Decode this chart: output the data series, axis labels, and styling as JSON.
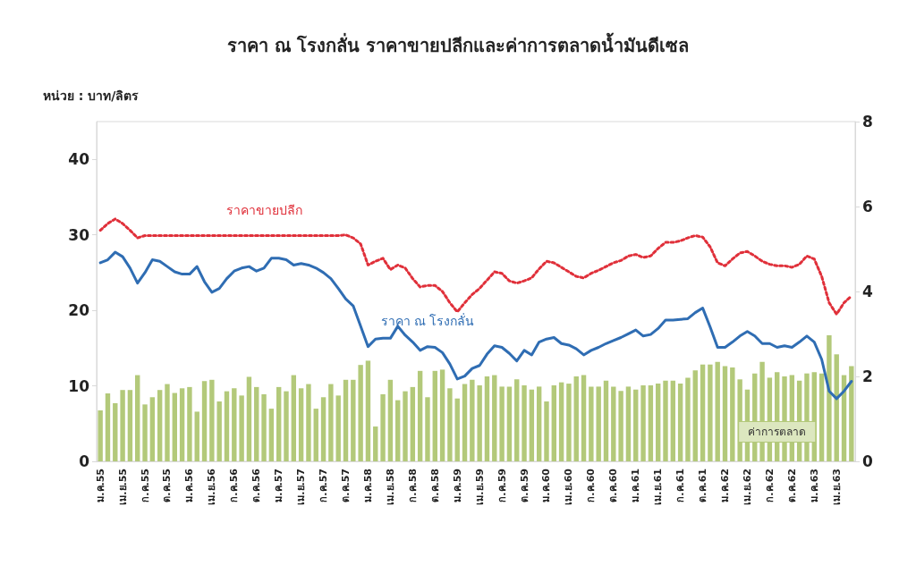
{
  "chart_data": {
    "type": "line",
    "title": "ราคา ณ โรงกลั่น ราคาขายปลีกและค่าการตลาดน้ำมันดีเซล",
    "ylabel": "หน่วย : บาท/ลิตร",
    "categories": [
      "ม.ค.55",
      null,
      null,
      "เม.ย.55",
      null,
      null,
      "ก.ค.55",
      null,
      null,
      "ต.ค.55",
      null,
      null,
      "ม.ค.56",
      null,
      null,
      "เม.ย.56",
      null,
      null,
      "ก.ค.56",
      null,
      null,
      "ต.ค.56",
      null,
      null,
      "ม.ค.57",
      null,
      null,
      "เม.ย.57",
      null,
      null,
      "ก.ค.57",
      null,
      null,
      "ต.ค.57",
      null,
      null,
      "ม.ค.58",
      null,
      null,
      "เม.ย.58",
      null,
      null,
      "ก.ค.58",
      null,
      null,
      "ต.ค.58",
      null,
      null,
      "ม.ค.59",
      null,
      null,
      "เม.ย.59",
      null,
      null,
      "ก.ค.59",
      null,
      null,
      "ต.ค.59",
      null,
      null,
      "ม.ค.60",
      null,
      null,
      "เม.ย.60",
      null,
      null,
      "ก.ค.60",
      null,
      null,
      "ต.ค.60",
      null,
      null,
      "ม.ค.61",
      null,
      null,
      "เม.ย.61",
      null,
      null,
      "ก.ค.61",
      null,
      null,
      "ต.ค.61",
      null,
      null,
      "ม.ค.62",
      null,
      null,
      "เม.ย.62",
      null,
      null,
      "ก.ค.62",
      null,
      null,
      "ต.ค.62",
      null,
      null,
      "ม.ค.63",
      null,
      null,
      "เม.ย.63",
      null,
      null
    ],
    "series": [
      {
        "name": "ค่าการตลาด",
        "type": "bar",
        "axis": "y2",
        "color": "#b3c97a",
        "values": [
          1.2,
          1.6,
          1.37,
          1.68,
          1.68,
          2.03,
          1.34,
          1.51,
          1.68,
          1.82,
          1.61,
          1.72,
          1.75,
          1.17,
          1.89,
          1.92,
          1.41,
          1.65,
          1.72,
          1.55,
          1.99,
          1.75,
          1.58,
          1.24,
          1.75,
          1.65,
          2.03,
          1.72,
          1.82,
          1.24,
          1.51,
          1.82,
          1.55,
          1.92,
          1.92,
          2.27,
          2.37,
          0.82,
          1.58,
          1.92,
          1.44,
          1.65,
          1.75,
          2.13,
          1.51,
          2.13,
          2.16,
          1.72,
          1.48,
          1.82,
          1.92,
          1.79,
          2.0,
          2.03,
          1.76,
          1.76,
          1.93,
          1.79,
          1.69,
          1.76,
          1.41,
          1.79,
          1.86,
          1.83,
          2.0,
          2.03,
          1.76,
          1.76,
          1.9,
          1.76,
          1.66,
          1.76,
          1.69,
          1.79,
          1.79,
          1.83,
          1.9,
          1.9,
          1.83,
          1.97,
          2.14,
          2.28,
          2.28,
          2.34,
          2.24,
          2.21,
          1.93,
          1.69,
          2.07,
          2.34,
          1.97,
          2.1,
          2.0,
          2.03,
          1.9,
          2.07,
          2.1,
          2.07,
          2.97,
          2.52,
          2.03,
          2.24
        ]
      },
      {
        "name": "ราคา ณ โรงกลั่น",
        "line_style": "solid",
        "color": "#2f6db3",
        "values": [
          26.3,
          26.7,
          27.7,
          27.1,
          25.6,
          23.6,
          25.0,
          26.7,
          26.5,
          25.8,
          25.1,
          24.8,
          24.8,
          25.8,
          23.8,
          22.4,
          22.9,
          24.2,
          25.2,
          25.6,
          25.8,
          25.2,
          25.6,
          26.9,
          26.9,
          26.7,
          26.0,
          26.2,
          26.0,
          25.6,
          25.0,
          24.2,
          22.9,
          21.5,
          20.6,
          17.9,
          15.2,
          16.2,
          16.3,
          16.3,
          17.9,
          16.7,
          15.8,
          14.7,
          15.2,
          15.1,
          14.4,
          12.9,
          10.9,
          11.3,
          12.3,
          12.7,
          14.2,
          15.3,
          15.1,
          14.3,
          13.3,
          14.7,
          14.1,
          15.8,
          16.2,
          16.4,
          15.6,
          15.4,
          14.9,
          14.1,
          14.7,
          15.1,
          15.6,
          16.0,
          16.4,
          16.9,
          17.4,
          16.6,
          16.8,
          17.6,
          18.7,
          18.7,
          18.8,
          18.9,
          19.7,
          20.3,
          17.8,
          15.1,
          15.1,
          15.8,
          16.6,
          17.2,
          16.6,
          15.6,
          15.6,
          15.1,
          15.3,
          15.1,
          15.8,
          16.6,
          15.8,
          13.5,
          9.3,
          8.3,
          9.3,
          10.6
        ]
      },
      {
        "name": "ราคาขายปลีก",
        "line_style": "dotted",
        "color": "#e0303a",
        "values": [
          30.6,
          31.5,
          32.1,
          31.5,
          30.6,
          29.6,
          29.9,
          29.9,
          29.9,
          29.9,
          29.9,
          29.9,
          29.9,
          29.9,
          29.9,
          29.9,
          29.9,
          29.9,
          29.9,
          29.9,
          29.9,
          29.9,
          29.9,
          29.9,
          29.9,
          29.9,
          29.9,
          29.9,
          29.9,
          29.9,
          29.9,
          29.9,
          29.9,
          30.0,
          29.6,
          28.8,
          26.0,
          26.5,
          26.9,
          25.4,
          26.0,
          25.6,
          24.2,
          23.1,
          23.3,
          23.3,
          22.5,
          21.0,
          19.8,
          21.0,
          22.1,
          22.9,
          24.0,
          25.1,
          24.9,
          23.9,
          23.6,
          23.9,
          24.3,
          25.5,
          26.5,
          26.3,
          25.7,
          25.1,
          24.5,
          24.3,
          24.9,
          25.3,
          25.8,
          26.3,
          26.6,
          27.2,
          27.4,
          27.0,
          27.2,
          28.2,
          29.0,
          29.0,
          29.2,
          29.6,
          29.9,
          29.7,
          28.4,
          26.3,
          25.9,
          26.8,
          27.6,
          27.8,
          27.2,
          26.5,
          26.1,
          25.9,
          25.9,
          25.7,
          26.1,
          27.2,
          26.8,
          24.5,
          21.0,
          19.5,
          21.0,
          21.9
        ]
      }
    ],
    "ylim": [
      0,
      45
    ],
    "yticks": [
      0,
      10,
      20,
      30,
      40
    ],
    "y2lim": [
      0,
      8
    ],
    "y2ticks": [
      0,
      2,
      4,
      6,
      8
    ],
    "grid": false,
    "legend": false,
    "marker": "none"
  }
}
